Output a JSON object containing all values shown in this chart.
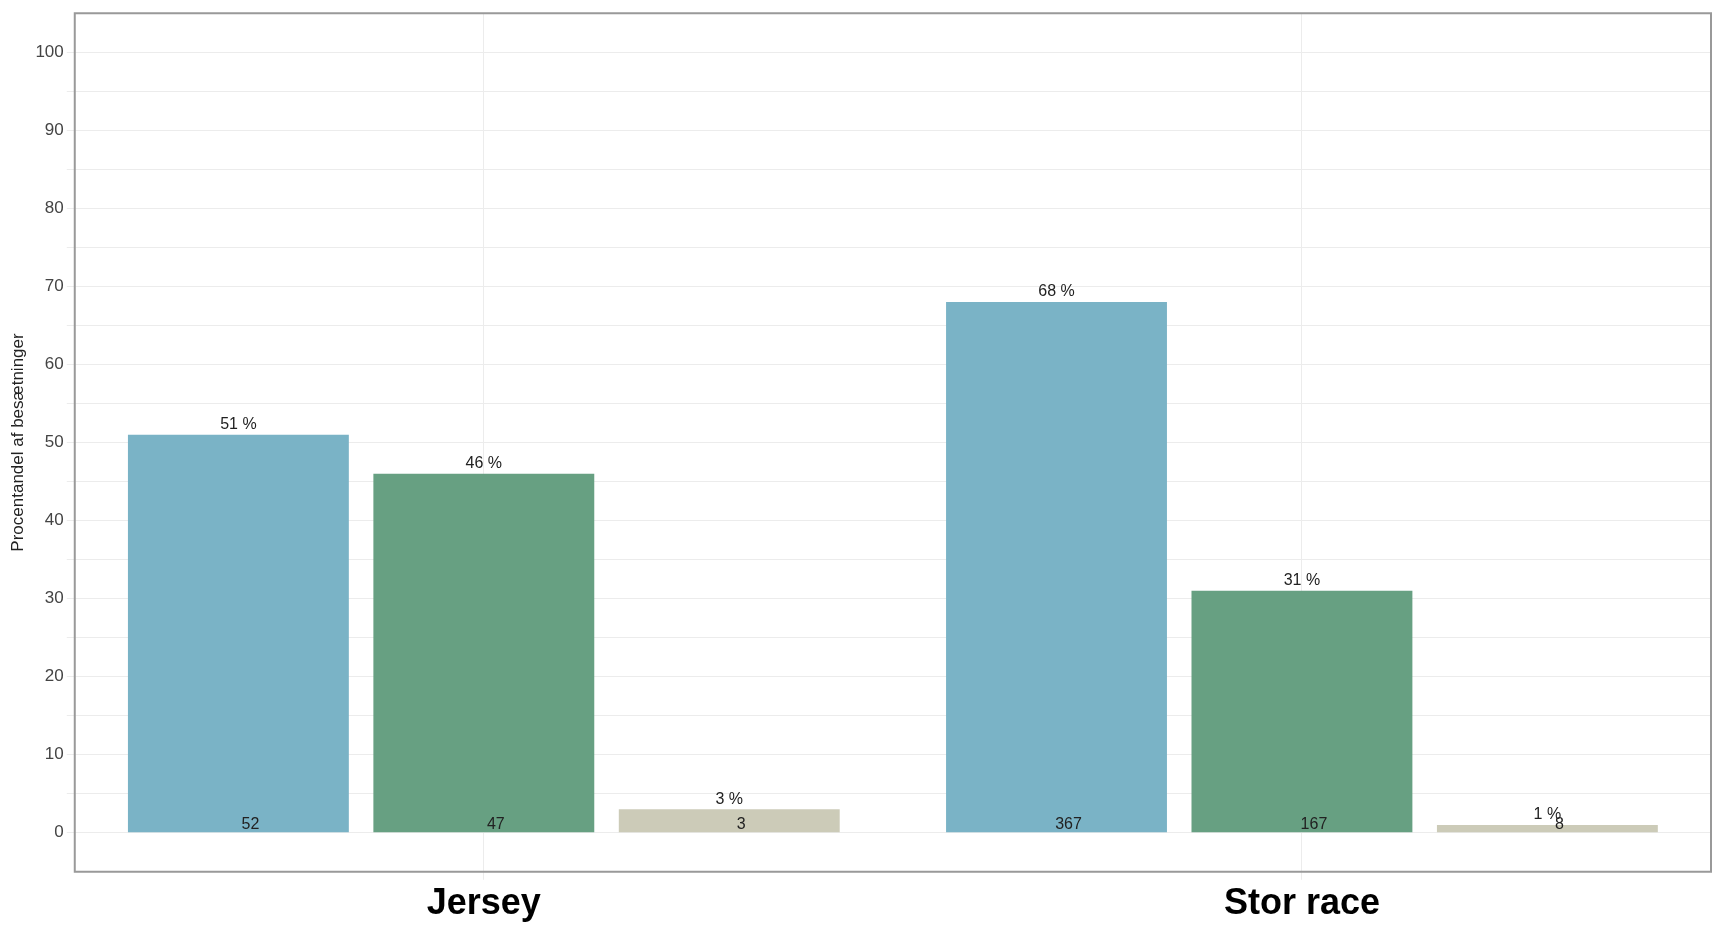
{
  "chart_data": {
    "type": "bar",
    "ylabel": "Procentandel af besætninger",
    "categories": [
      "Jersey",
      "Stor race"
    ],
    "series": [
      {
        "color": "#7ab3c6",
        "values": [
          51,
          68
        ],
        "value_labels": [
          "51 %",
          "68 %"
        ]
      },
      {
        "color": "#67a082",
        "values": [
          46,
          31
        ],
        "value_labels": [
          "46 %",
          "31 %"
        ]
      },
      {
        "color": "#cccbb8",
        "values": [
          3,
          1
        ],
        "value_labels": [
          "3 %",
          "1 %"
        ]
      }
    ],
    "annotations": [
      "52",
      "47",
      "3",
      "367",
      "167",
      "8"
    ],
    "ylim": [
      -5,
      105
    ],
    "yticks": [
      0,
      {
        "value": 5,
        "label": null
      },
      10,
      {
        "value": 15,
        "label": null
      },
      20,
      {
        "value": 25,
        "label": null
      },
      30,
      {
        "value": 35,
        "label": null
      },
      40,
      {
        "value": 45,
        "label": null
      },
      50,
      {
        "value": 55,
        "label": null
      },
      60,
      {
        "value": 65,
        "label": null
      },
      70,
      {
        "value": 75,
        "label": null
      },
      80,
      {
        "value": 85,
        "label": null
      },
      90,
      {
        "value": 95,
        "label": null
      },
      100
    ],
    "grid": true,
    "legend": false
  }
}
